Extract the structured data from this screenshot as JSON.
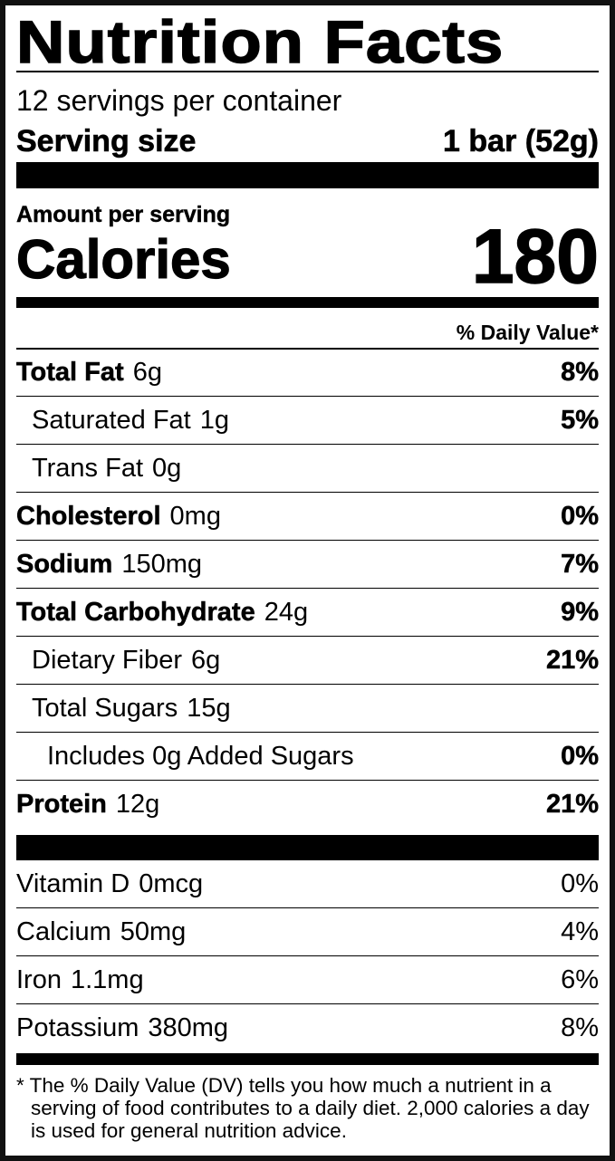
{
  "title": "Nutrition Facts",
  "servings_per_container": "12 servings per container",
  "serving_size": {
    "label": "Serving size",
    "value": "1 bar (52g)"
  },
  "amount_per_serving": "Amount per serving",
  "calories": {
    "label": "Calories",
    "value": "180"
  },
  "dv_header": "% Daily Value*",
  "nutrients": [
    {
      "name": "Total Fat",
      "amount": "6g",
      "dv": "8%",
      "bold": true,
      "indent": 0
    },
    {
      "name": "Saturated Fat",
      "amount": "1g",
      "dv": "5%",
      "bold": false,
      "indent": 1
    },
    {
      "name": "Trans Fat",
      "amount": "0g",
      "dv": "",
      "bold": false,
      "indent": 1
    },
    {
      "name": "Cholesterol",
      "amount": "0mg",
      "dv": "0%",
      "bold": true,
      "indent": 0
    },
    {
      "name": "Sodium",
      "amount": "150mg",
      "dv": "7%",
      "bold": true,
      "indent": 0
    },
    {
      "name": "Total Carbohydrate",
      "amount": "24g",
      "dv": "9%",
      "bold": true,
      "indent": 0
    },
    {
      "name": "Dietary Fiber",
      "amount": "6g",
      "dv": "21%",
      "bold": false,
      "indent": 1
    },
    {
      "name": "Total Sugars",
      "amount": "15g",
      "dv": "",
      "bold": false,
      "indent": 1
    },
    {
      "name": "Includes 0g Added Sugars",
      "amount": "",
      "dv": "0%",
      "bold": false,
      "indent": 2
    },
    {
      "name": "Protein",
      "amount": "12g",
      "dv": "21%",
      "bold": true,
      "indent": 0
    }
  ],
  "vitamins": [
    {
      "name": "Vitamin D",
      "amount": "0mcg",
      "dv": "0%"
    },
    {
      "name": "Calcium",
      "amount": "50mg",
      "dv": "4%"
    },
    {
      "name": "Iron",
      "amount": "1.1mg",
      "dv": "6%"
    },
    {
      "name": "Potassium",
      "amount": "380mg",
      "dv": "8%"
    }
  ],
  "footnote": "* The % Daily Value (DV) tells you how much a nutrient in a serving of food contributes to a daily diet. 2,000 calories a day is used for general nutrition advice."
}
